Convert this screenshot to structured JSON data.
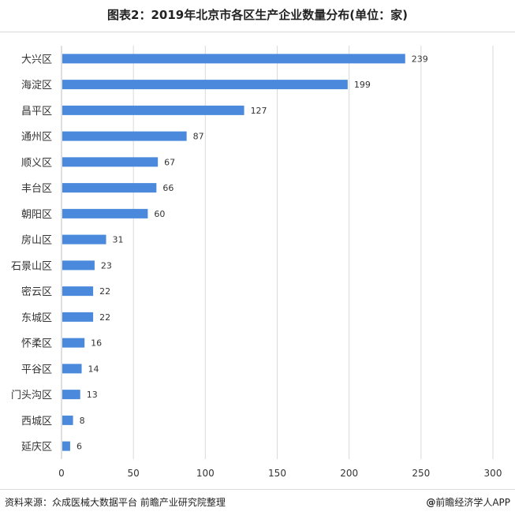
{
  "title": "图表2：2019年北京市各区生产企业数量分布(单位：家)",
  "source": "资料来源：众成医械大数据平台 前瞻产业研究院整理",
  "brand": "前瞻经济学人APP",
  "colors": {
    "bar": "#4a89dc",
    "grid": "#d9d9d9",
    "axis": "#bfbfbf"
  },
  "chart_data": {
    "type": "bar",
    "orientation": "horizontal",
    "categories": [
      "大兴区",
      "海淀区",
      "昌平区",
      "通州区",
      "顺义区",
      "丰台区",
      "朝阳区",
      "房山区",
      "石景山区",
      "密云区",
      "东城区",
      "怀柔区",
      "平谷区",
      "门头沟区",
      "西城区",
      "延庆区"
    ],
    "values": [
      239,
      199,
      127,
      87,
      67,
      66,
      60,
      31,
      23,
      22,
      22,
      16,
      14,
      13,
      8,
      6
    ],
    "data_labels": [
      "239",
      "199",
      "127",
      "87",
      "67",
      "66",
      "60",
      "31",
      "23",
      "22",
      "22",
      "16",
      "14",
      "13",
      "8",
      "6"
    ],
    "xticks": [
      0,
      50,
      100,
      150,
      200,
      250,
      300
    ],
    "xtick_labels": [
      "0",
      "50",
      "100",
      "150",
      "200",
      "250",
      "300"
    ],
    "xlim": [
      0,
      300
    ],
    "grid": true,
    "xlabel": "",
    "ylabel": ""
  }
}
